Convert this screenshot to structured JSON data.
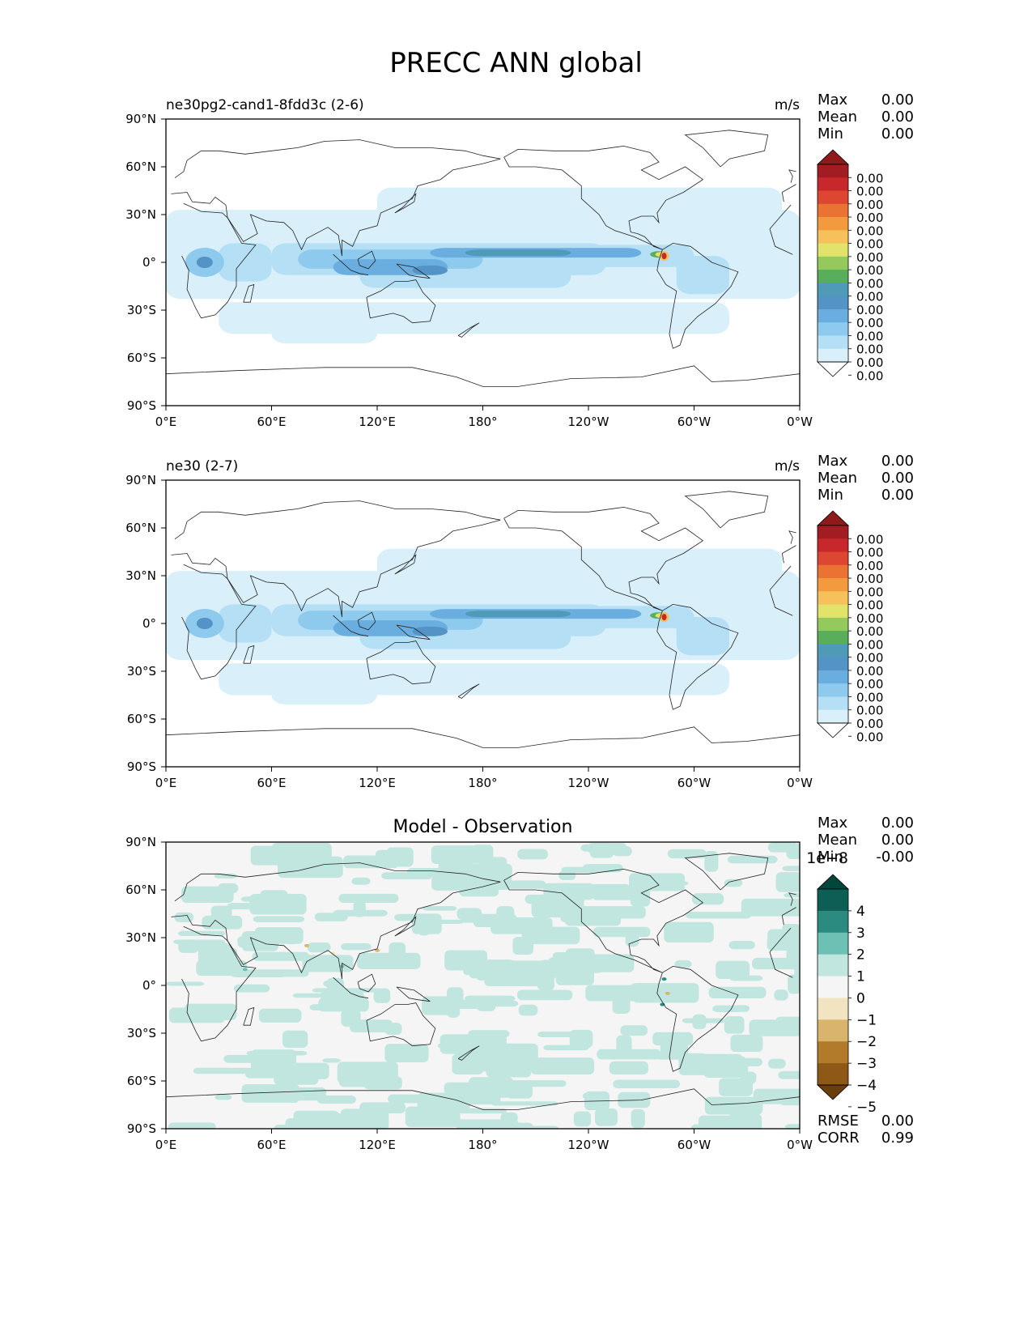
{
  "title": "PRECC ANN global",
  "chart_data": [
    {
      "type": "heatmap",
      "subtitle_left": "ne30pg2-cand1-8fdd3c (2-6)",
      "units": "m/s",
      "stats": [
        {
          "label": "Max",
          "value": "0.00"
        },
        {
          "label": "Mean",
          "value": "0.00"
        },
        {
          "label": "Min",
          "value": "0.00"
        }
      ],
      "xticks": [
        "0°E",
        "60°E",
        "120°E",
        "180°",
        "120°W",
        "60°W",
        "0°W"
      ],
      "yticks": [
        "90°N",
        "60°N",
        "30°N",
        "0°",
        "30°S",
        "60°S",
        "90°S"
      ],
      "colorbar": {
        "colors": [
          "#ffffff",
          "#d9f0fa",
          "#b5dff5",
          "#8ec9ee",
          "#6aaedf",
          "#5393c6",
          "#4e9ab7",
          "#58ae5a",
          "#94c95e",
          "#e1e36a",
          "#f6c15a",
          "#f39a3f",
          "#ea7233",
          "#dd4630",
          "#c8282b",
          "#a21d21",
          "#8e1a1a"
        ],
        "labels": [
          "0.00",
          "0.00",
          "0.00",
          "0.00",
          "0.00",
          "0.00",
          "0.00",
          "0.00",
          "0.00",
          "0.00",
          "0.00",
          "0.00",
          "0.00",
          "0.00",
          "0.00",
          "0.00"
        ]
      }
    },
    {
      "type": "heatmap",
      "subtitle_left": "ne30 (2-7)",
      "units": "m/s",
      "stats": [
        {
          "label": "Max",
          "value": "0.00"
        },
        {
          "label": "Mean",
          "value": "0.00"
        },
        {
          "label": "Min",
          "value": "0.00"
        }
      ],
      "xticks": [
        "0°E",
        "60°E",
        "120°E",
        "180°",
        "120°W",
        "60°W",
        "0°W"
      ],
      "yticks": [
        "90°N",
        "60°N",
        "30°N",
        "0°",
        "30°S",
        "60°S",
        "90°S"
      ],
      "colorbar": {
        "colors": [
          "#ffffff",
          "#d9f0fa",
          "#b5dff5",
          "#8ec9ee",
          "#6aaedf",
          "#5393c6",
          "#4e9ab7",
          "#58ae5a",
          "#94c95e",
          "#e1e36a",
          "#f6c15a",
          "#f39a3f",
          "#ea7233",
          "#dd4630",
          "#c8282b",
          "#a21d21",
          "#8e1a1a"
        ],
        "labels": [
          "0.00",
          "0.00",
          "0.00",
          "0.00",
          "0.00",
          "0.00",
          "0.00",
          "0.00",
          "0.00",
          "0.00",
          "0.00",
          "0.00",
          "0.00",
          "0.00",
          "0.00",
          "0.00"
        ]
      }
    },
    {
      "type": "heatmap",
      "subtitle_center": "Model - Observation",
      "stats": [
        {
          "label": "Max",
          "value": "0.00"
        },
        {
          "label": "Mean",
          "value": "0.00"
        },
        {
          "label": "Min",
          "value": "-0.00"
        }
      ],
      "extra_stats": [
        {
          "label": "RMSE",
          "value": "0.00"
        },
        {
          "label": "CORR",
          "value": "0.99"
        }
      ],
      "xticks": [
        "0°E",
        "60°E",
        "120°E",
        "180°",
        "120°W",
        "60°W",
        "0°W"
      ],
      "yticks": [
        "90°N",
        "60°N",
        "30°N",
        "0°",
        "30°S",
        "60°S",
        "90°S"
      ],
      "colorbar": {
        "scale_label": "1e−8",
        "colors": [
          "#01463c",
          "#0d5f55",
          "#2b8b80",
          "#6dc1b4",
          "#c0e6df",
          "#f5f5f5",
          "#f2e4c0",
          "#d9b46c",
          "#b27a2b",
          "#8e5817",
          "#6a3d0b"
        ],
        "labels": [
          "4",
          "3",
          "2",
          "1",
          "0",
          "−1",
          "−2",
          "−3",
          "−4",
          "−5"
        ]
      }
    }
  ]
}
